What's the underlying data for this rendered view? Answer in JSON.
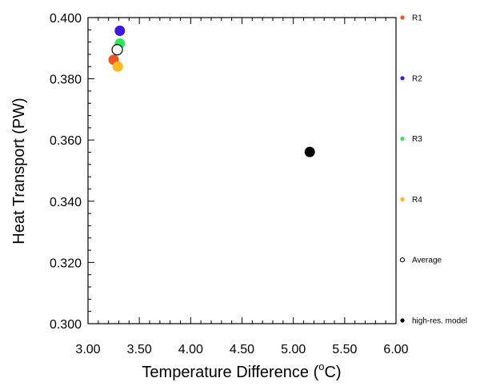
{
  "chart_data": {
    "type": "scatter",
    "xlabel_main": "Temperature Difference (",
    "xlabel_sup": "o",
    "xlabel_tail": "C)",
    "ylabel": "Heat Transport (PW)",
    "xlim": [
      3.0,
      6.0
    ],
    "ylim": [
      0.3,
      0.4
    ],
    "xticks": [
      "3.00",
      "3.50",
      "4.00",
      "4.50",
      "5.00",
      "5.50",
      "6.00"
    ],
    "yticks": [
      "0.300",
      "0.320",
      "0.340",
      "0.360",
      "0.380",
      "0.400"
    ],
    "grid": false,
    "legend_position": "right",
    "series": [
      {
        "name": "R1",
        "color": "#f0541a",
        "marker": "filled",
        "x": 3.25,
        "y": 0.3862
      },
      {
        "name": "R2",
        "color": "#3d18e6",
        "marker": "filled",
        "x": 3.31,
        "y": 0.3957
      },
      {
        "name": "R3",
        "color": "#22ee55",
        "marker": "filled",
        "x": 3.31,
        "y": 0.3915
      },
      {
        "name": "R4",
        "color": "#ffb81a",
        "marker": "filled",
        "x": 3.29,
        "y": 0.384
      },
      {
        "name": "Average",
        "color": "#000000",
        "marker": "open",
        "x": 3.285,
        "y": 0.3895
      },
      {
        "name": "high-res. model",
        "color": "#000000",
        "marker": "filled",
        "x": 5.16,
        "y": 0.3561
      }
    ]
  }
}
